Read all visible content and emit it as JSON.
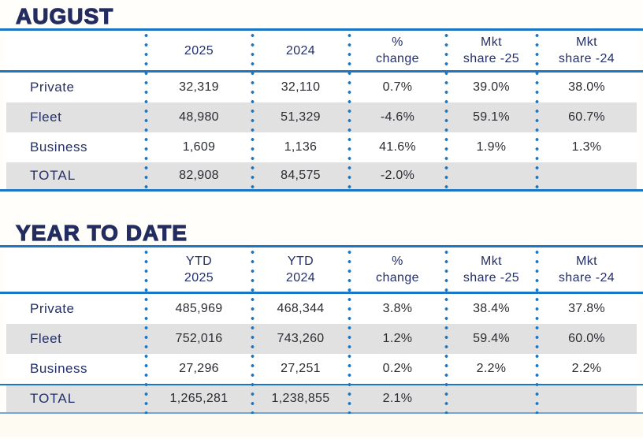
{
  "colors": {
    "accent_blue": "#1b76c4",
    "navy_text": "#243067",
    "title_navy": "#232c5f",
    "row_shade_gray": "#e1e1e1",
    "number_text": "#2b2d33"
  },
  "headers": [
    [
      "2025",
      "2024",
      "%\nchange",
      "Mkt\nshare -25",
      "Mkt\nshare -24"
    ],
    [
      "YTD\n2025",
      "YTD\n2024",
      "%\nchange",
      "Mkt\nshare -25",
      "Mkt\nshare -24"
    ]
  ],
  "chart_data": [
    {
      "type": "table",
      "title": "AUGUST",
      "columns": [
        "",
        "2025",
        "2024",
        "% change",
        "Mkt share -25",
        "Mkt share -24"
      ],
      "rows": [
        [
          "Private",
          "32,319",
          "32,110",
          "0.7%",
          "39.0%",
          "38.0%"
        ],
        [
          "Fleet",
          "48,980",
          "51,329",
          "-4.6%",
          "59.1%",
          "60.7%"
        ],
        [
          "Business",
          "1,609",
          "1,136",
          "41.6%",
          "1.9%",
          "1.3%"
        ]
      ],
      "total": [
        "TOTAL",
        "82,908",
        "84,575",
        "-2.0%",
        "",
        ""
      ]
    },
    {
      "type": "table",
      "title": "YEAR TO DATE",
      "columns": [
        "",
        "YTD 2025",
        "YTD 2024",
        "% change",
        "Mkt share -25",
        "Mkt share -24"
      ],
      "rows": [
        [
          "Private",
          "485,969",
          "468,344",
          "3.8%",
          "38.4%",
          "37.8%"
        ],
        [
          "Fleet",
          "752,016",
          "743,260",
          "1.2%",
          "59.4%",
          "60.0%"
        ],
        [
          "Business",
          "27,296",
          "27,251",
          "0.2%",
          "2.2%",
          "2.2%"
        ]
      ],
      "total": [
        "TOTAL",
        "1,265,281",
        "1,238,855",
        "2.1%",
        "",
        ""
      ]
    }
  ]
}
